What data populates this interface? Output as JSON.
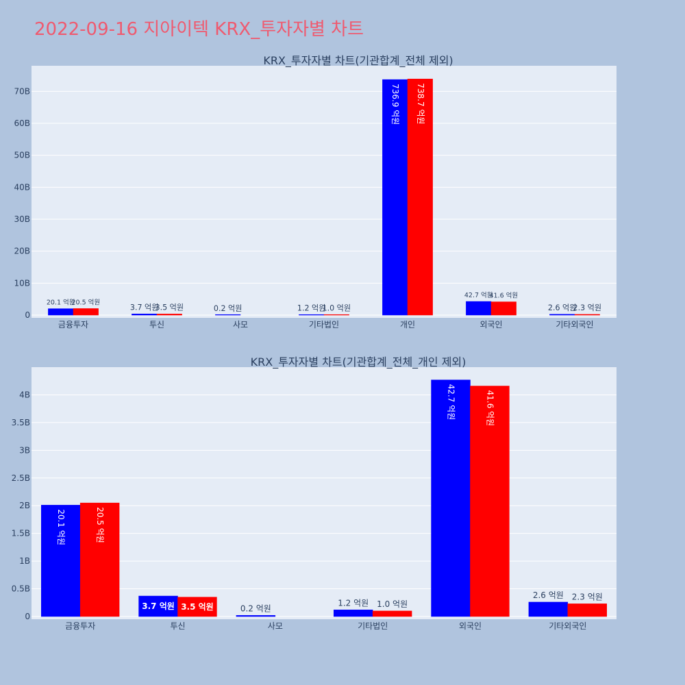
{
  "title": "2022-09-16 지아이텍 KRX_투자자별 차트",
  "colors": {
    "background": "#b0c4de",
    "plot_bg": "#e5ecf6",
    "grid": "#ffffff",
    "title": "#ef5a6f",
    "series_a": "#0000ff",
    "series_b": "#ff0000",
    "text": "#2a3f5f"
  },
  "chart_data": [
    {
      "type": "bar",
      "title": "KRX_투자자별 차트(기관합계_전체 제외)",
      "categories": [
        "금융투자",
        "투신",
        "사모",
        "기타법인",
        "개인",
        "외국인",
        "기타외국인"
      ],
      "series": [
        {
          "color": "#0000ff",
          "values": [
            2010000000,
            370000000,
            20000000,
            120000000,
            73690000000,
            4270000000,
            260000000
          ],
          "labels": [
            "20.1 억원",
            "3.7 억원",
            "0.2 억원",
            "1.2 억원",
            "736.9 억원",
            "42.7 억원",
            "2.6 억원"
          ]
        },
        {
          "color": "#ff0000",
          "values": [
            2050000000,
            350000000,
            null,
            100000000,
            73870000000,
            4160000000,
            230000000
          ],
          "labels": [
            "20.5 억원",
            "3.5 억원",
            "",
            "1.0 억원",
            "738.7 억원",
            "41.6 억원",
            "2.3 억원"
          ]
        }
      ],
      "ylim": [
        0,
        78000000000
      ],
      "yticks": [
        0,
        10000000000,
        20000000000,
        30000000000,
        40000000000,
        50000000000,
        60000000000,
        70000000000
      ],
      "yticklabels": [
        "0",
        "10B",
        "20B",
        "30B",
        "40B",
        "50B",
        "60B",
        "70B"
      ],
      "grid": true
    },
    {
      "type": "bar",
      "title": "KRX_투자자별 차트(기관합계_전체_개인 제외)",
      "categories": [
        "금융투자",
        "투신",
        "사모",
        "기타법인",
        "외국인",
        "기타외국인"
      ],
      "series": [
        {
          "color": "#0000ff",
          "values": [
            2010000000,
            370000000,
            20000000,
            120000000,
            4270000000,
            260000000
          ],
          "labels": [
            "20.1 억원",
            "3.7 억원",
            "0.2 억원",
            "1.2 억원",
            "42.7 억원",
            "2.6 억원"
          ]
        },
        {
          "color": "#ff0000",
          "values": [
            2050000000,
            350000000,
            null,
            100000000,
            4160000000,
            230000000
          ],
          "labels": [
            "20.5 억원",
            "3.5 억원",
            "",
            "1.0 억원",
            "41.6 억원",
            "2.3 억원"
          ]
        }
      ],
      "ylim": [
        0,
        4500000000
      ],
      "yticks": [
        0,
        500000000,
        1000000000,
        1500000000,
        2000000000,
        2500000000,
        3000000000,
        3500000000,
        4000000000
      ],
      "yticklabels": [
        "0",
        "0.5B",
        "1B",
        "1.5B",
        "2B",
        "2.5B",
        "3B",
        "3.5B",
        "4B"
      ],
      "grid": true
    }
  ]
}
